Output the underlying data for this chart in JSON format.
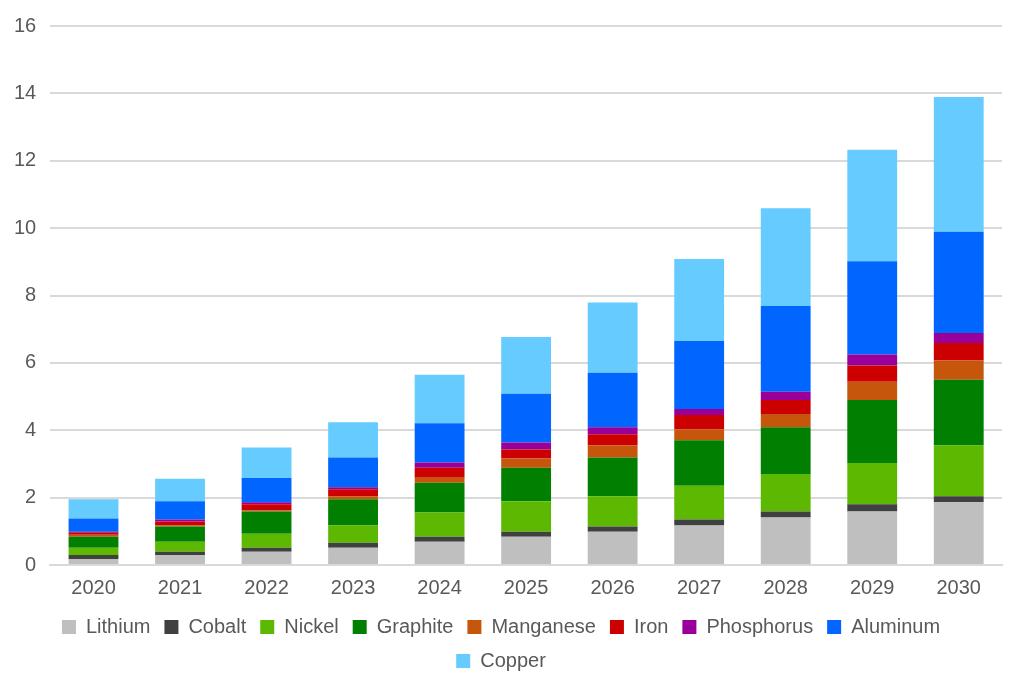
{
  "chart_data": {
    "type": "bar",
    "stacked": true,
    "categories": [
      "2020",
      "2021",
      "2022",
      "2023",
      "2024",
      "2025",
      "2026",
      "2027",
      "2028",
      "2029",
      "2030"
    ],
    "series": [
      {
        "name": "Lithium",
        "color": "#bfbfbf",
        "values": [
          0.18,
          0.3,
          0.39,
          0.51,
          0.69,
          0.84,
          0.99,
          1.17,
          1.41,
          1.59,
          1.86
        ]
      },
      {
        "name": "Cobalt",
        "color": "#404040",
        "values": [
          0.12,
          0.09,
          0.12,
          0.15,
          0.15,
          0.15,
          0.15,
          0.18,
          0.18,
          0.21,
          0.18
        ]
      },
      {
        "name": "Nickel",
        "color": "#5cb800",
        "values": [
          0.21,
          0.3,
          0.42,
          0.51,
          0.72,
          0.9,
          0.9,
          1.0,
          1.11,
          1.23,
          1.51
        ]
      },
      {
        "name": "Graphite",
        "color": "#007f00",
        "values": [
          0.33,
          0.45,
          0.66,
          0.78,
          0.88,
          1.0,
          1.15,
          1.35,
          1.39,
          1.87,
          1.95
        ]
      },
      {
        "name": "Manganese",
        "color": "#c5560b",
        "values": [
          0.06,
          0.04,
          0.03,
          0.09,
          0.15,
          0.27,
          0.36,
          0.33,
          0.39,
          0.54,
          0.57
        ]
      },
      {
        "name": "Iron",
        "color": "#cc0000",
        "values": [
          0.06,
          0.11,
          0.18,
          0.21,
          0.3,
          0.27,
          0.33,
          0.42,
          0.42,
          0.48,
          0.52
        ]
      },
      {
        "name": "Phosphorus",
        "color": "#990099",
        "values": [
          0.03,
          0.06,
          0.06,
          0.06,
          0.15,
          0.21,
          0.21,
          0.18,
          0.24,
          0.33,
          0.3
        ]
      },
      {
        "name": "Aluminum",
        "color": "#0066ff",
        "values": [
          0.39,
          0.54,
          0.72,
          0.88,
          1.17,
          1.44,
          1.62,
          2.02,
          2.55,
          2.77,
          3.0
        ]
      },
      {
        "name": "Copper",
        "color": "#66ccff",
        "values": [
          0.57,
          0.67,
          0.91,
          1.05,
          1.44,
          1.69,
          2.08,
          2.43,
          2.9,
          3.31,
          4.0
        ]
      }
    ],
    "ylim": [
      0,
      16
    ],
    "yticks": [
      0,
      2,
      4,
      6,
      8,
      10,
      12,
      14,
      16
    ],
    "grid": "y",
    "legend": "bottom"
  }
}
